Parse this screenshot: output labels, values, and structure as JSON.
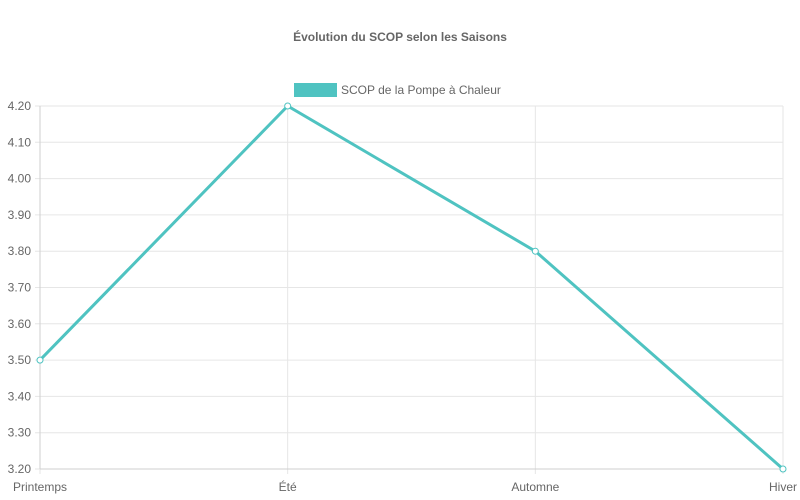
{
  "chart_data": {
    "type": "line",
    "title": "Évolution du SCOP selon les Saisons",
    "categories": [
      "Printemps",
      "Été",
      "Automne",
      "Hiver"
    ],
    "series": [
      {
        "name": "SCOP de la Pompe à Chaleur",
        "values": [
          3.5,
          4.2,
          3.8,
          3.2
        ],
        "color": "#4fc3c1"
      }
    ],
    "yticks": [
      "4.20",
      "4.10",
      "4.00",
      "3.90",
      "3.80",
      "3.70",
      "3.60",
      "3.50",
      "3.40",
      "3.30",
      "3.20"
    ],
    "ylim": [
      3.2,
      4.2
    ],
    "grid": true,
    "legend_position": "top"
  }
}
